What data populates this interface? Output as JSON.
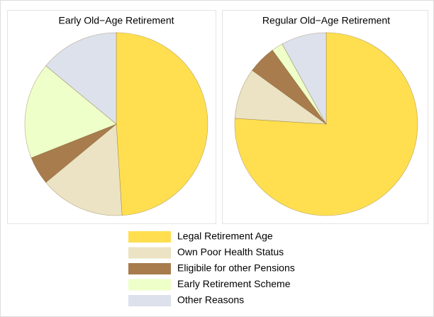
{
  "chart_data": [
    {
      "type": "pie",
      "title": "Early Old−Age Retirement",
      "categories": [
        "Legal Retirement Age",
        "Own Poor Health Status",
        "Eligibile for other Pensions",
        "Early Retirement Scheme",
        "Other Reasons"
      ],
      "values": [
        49,
        15,
        5,
        17,
        14
      ],
      "colors": [
        "#ffdf4f",
        "#ebe3c3",
        "#a87c4c",
        "#efffc9",
        "#dde1ec"
      ]
    },
    {
      "type": "pie",
      "title": "Regular Old−Age Retirement",
      "categories": [
        "Legal Retirement Age",
        "Own Poor Health Status",
        "Eligibile for other Pensions",
        "Early Retirement Scheme",
        "Other Reasons"
      ],
      "values": [
        76,
        9,
        5,
        2,
        8
      ],
      "colors": [
        "#ffdf4f",
        "#ebe3c3",
        "#a87c4c",
        "#efffc9",
        "#dde1ec"
      ]
    }
  ]
}
